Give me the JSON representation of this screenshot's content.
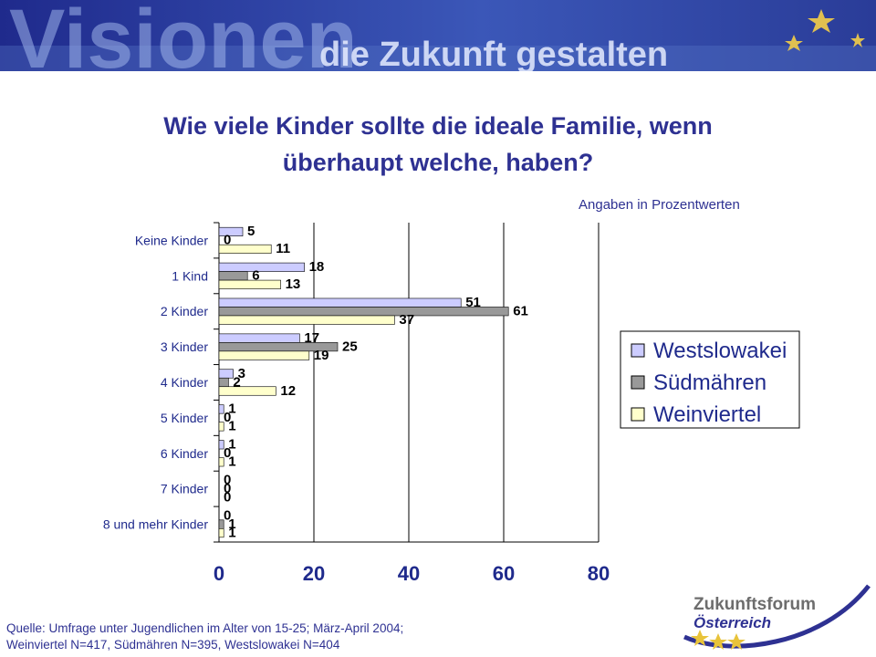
{
  "banner": {
    "word": "Visionen",
    "tagline": "die Zukunft gestalten"
  },
  "title_line1": "Wie viele Kinder sollte die ideale Familie, wenn",
  "title_line2": "überhaupt welche, haben?",
  "unit_note": "Angaben in  Prozentwerten",
  "source_line1": "Quelle: Umfrage unter Jugendlichen im Alter von 15-25; März-April 2004;",
  "source_line2": "Weinviertel N=417, Südmähren N=395, Westslowakei N=404",
  "logo": {
    "line1": "Zukunftsforum",
    "line2": "Österreich"
  },
  "colors": {
    "westslowakei": "#ccccff",
    "suedmaehren": "#999999",
    "weinviertel": "#ffffcc",
    "accent": "#2e3192"
  },
  "chart_data": {
    "type": "bar",
    "orientation": "horizontal",
    "title": "Wie viele Kinder sollte die ideale Familie, wenn überhaupt welche, haben?",
    "xlabel": "",
    "ylabel": "",
    "xlim": [
      0,
      80
    ],
    "xticks": [
      "0",
      "20",
      "40",
      "60",
      "80"
    ],
    "grid": true,
    "legend_position": "right",
    "categories": [
      "Keine Kinder",
      "1 Kind",
      "2 Kinder",
      "3 Kinder",
      "4 Kinder",
      "5 Kinder",
      "6 Kinder",
      "7 Kinder",
      "8 und mehr Kinder"
    ],
    "series": [
      {
        "name": "Westslowakei",
        "values": [
          5,
          18,
          51,
          17,
          3,
          1,
          1,
          0,
          0
        ]
      },
      {
        "name": "Südmähren",
        "values": [
          0,
          6,
          61,
          25,
          2,
          0,
          0,
          0,
          1
        ]
      },
      {
        "name": "Weinviertel",
        "values": [
          11,
          13,
          37,
          19,
          12,
          1,
          1,
          0,
          1
        ]
      }
    ]
  }
}
